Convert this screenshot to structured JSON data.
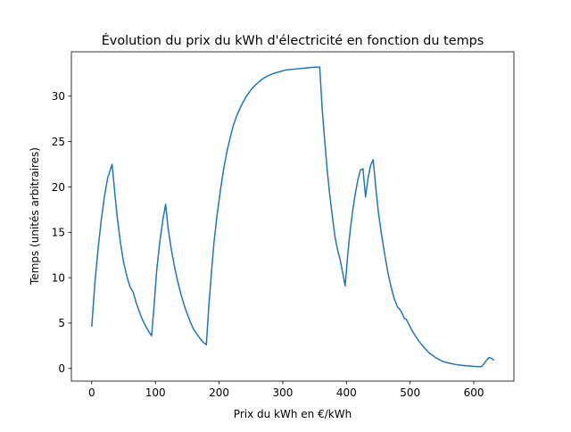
{
  "chart_data": {
    "type": "line",
    "title": "Évolution du prix du kWh d'électricité en fonction du temps",
    "xlabel": "Prix du kWh en €/kWh",
    "ylabel": "Temps (unités arbitraires)",
    "xlim": [
      -32,
      663
    ],
    "ylim": [
      -1.4,
      34.9
    ],
    "xticks": [
      0,
      100,
      200,
      300,
      400,
      500,
      600
    ],
    "yticks": [
      0,
      5,
      10,
      15,
      20,
      25,
      30
    ],
    "grid": false,
    "legend": "none",
    "series": [
      {
        "color": "#1f77b4",
        "points": [
          [
            0,
            4.6
          ],
          [
            5,
            9.5
          ],
          [
            10,
            13.2
          ],
          [
            15,
            16.4
          ],
          [
            20,
            19.0
          ],
          [
            25,
            21.0
          ],
          [
            32,
            22.5
          ],
          [
            36,
            19.5
          ],
          [
            40,
            16.7
          ],
          [
            45,
            13.9
          ],
          [
            50,
            11.7
          ],
          [
            55,
            10.2
          ],
          [
            60,
            9.0
          ],
          [
            65,
            8.4
          ],
          [
            70,
            7.2
          ],
          [
            75,
            6.2
          ],
          [
            80,
            5.3
          ],
          [
            85,
            4.6
          ],
          [
            90,
            4.0
          ],
          [
            94,
            3.6
          ],
          [
            98,
            7.0
          ],
          [
            102,
            10.8
          ],
          [
            107,
            14.0
          ],
          [
            112,
            16.5
          ],
          [
            116,
            18.1
          ],
          [
            120,
            15.4
          ],
          [
            125,
            13.1
          ],
          [
            130,
            11.2
          ],
          [
            135,
            9.6
          ],
          [
            140,
            8.2
          ],
          [
            145,
            7.0
          ],
          [
            150,
            6.0
          ],
          [
            155,
            5.1
          ],
          [
            160,
            4.3
          ],
          [
            165,
            3.8
          ],
          [
            170,
            3.3
          ],
          [
            175,
            2.9
          ],
          [
            180,
            2.6
          ],
          [
            184,
            7.0
          ],
          [
            188,
            10.6
          ],
          [
            192,
            13.9
          ],
          [
            197,
            17.0
          ],
          [
            202,
            19.6
          ],
          [
            207,
            21.9
          ],
          [
            212,
            23.8
          ],
          [
            217,
            25.3
          ],
          [
            222,
            26.7
          ],
          [
            228,
            27.9
          ],
          [
            235,
            29.0
          ],
          [
            242,
            29.9
          ],
          [
            250,
            30.7
          ],
          [
            258,
            31.3
          ],
          [
            266,
            31.8
          ],
          [
            275,
            32.2
          ],
          [
            285,
            32.5
          ],
          [
            295,
            32.7
          ],
          [
            305,
            32.9
          ],
          [
            320,
            33.0
          ],
          [
            335,
            33.1
          ],
          [
            350,
            33.2
          ],
          [
            358,
            33.2
          ],
          [
            362,
            28.5
          ],
          [
            366,
            25.0
          ],
          [
            370,
            21.7
          ],
          [
            374,
            19.0
          ],
          [
            378,
            16.7
          ],
          [
            382,
            14.5
          ],
          [
            386,
            13.1
          ],
          [
            390,
            12.0
          ],
          [
            394,
            10.6
          ],
          [
            398,
            9.1
          ],
          [
            402,
            12.5
          ],
          [
            406,
            15.3
          ],
          [
            410,
            17.5
          ],
          [
            414,
            19.3
          ],
          [
            418,
            20.8
          ],
          [
            422,
            21.9
          ],
          [
            426,
            22.0
          ],
          [
            430,
            18.9
          ],
          [
            434,
            21.0
          ],
          [
            438,
            22.4
          ],
          [
            442,
            23.0
          ],
          [
            446,
            20.0
          ],
          [
            450,
            17.3
          ],
          [
            455,
            14.8
          ],
          [
            460,
            12.6
          ],
          [
            465,
            10.6
          ],
          [
            470,
            9.0
          ],
          [
            475,
            7.7
          ],
          [
            480,
            6.8
          ],
          [
            485,
            6.4
          ],
          [
            488,
            6.0
          ],
          [
            491,
            5.5
          ],
          [
            494,
            5.4
          ],
          [
            497,
            5.0
          ],
          [
            502,
            4.3
          ],
          [
            508,
            3.6
          ],
          [
            515,
            2.9
          ],
          [
            522,
            2.3
          ],
          [
            530,
            1.7
          ],
          [
            540,
            1.2
          ],
          [
            550,
            0.8
          ],
          [
            560,
            0.6
          ],
          [
            570,
            0.45
          ],
          [
            580,
            0.35
          ],
          [
            590,
            0.28
          ],
          [
            600,
            0.22
          ],
          [
            608,
            0.2
          ],
          [
            612,
            0.2
          ],
          [
            616,
            0.5
          ],
          [
            620,
            0.9
          ],
          [
            624,
            1.2
          ],
          [
            628,
            1.1
          ],
          [
            632,
            0.9
          ]
        ]
      }
    ]
  }
}
